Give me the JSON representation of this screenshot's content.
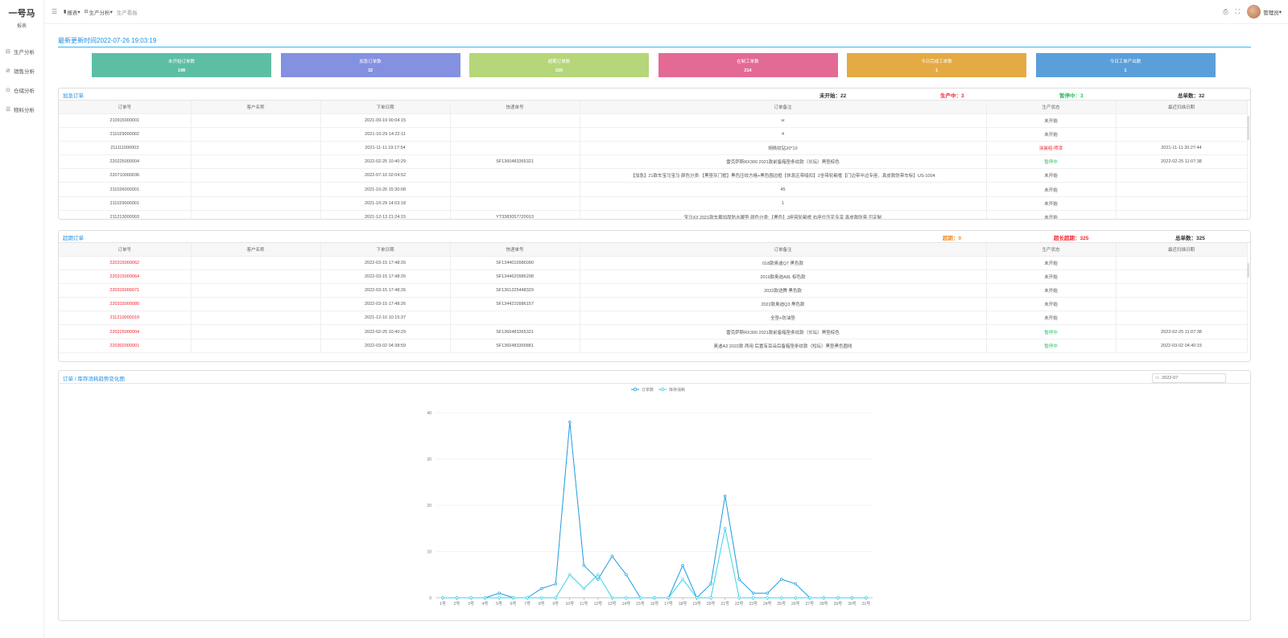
{
  "sidebar": {
    "logo_title": "一号马",
    "logo_sub": "报表",
    "items": [
      {
        "icon": "factory-icon",
        "glyph": "⊟",
        "label": "生产分析"
      },
      {
        "icon": "sales-icon",
        "glyph": "⊘",
        "label": "销售分析"
      },
      {
        "icon": "warehouse-icon",
        "glyph": "⊙",
        "label": "仓储分析"
      },
      {
        "icon": "material-icon",
        "glyph": "☰",
        "label": "物料分析"
      }
    ]
  },
  "header": {
    "breadcrumbs": [
      {
        "icon": "chart-icon",
        "glyph": "▮",
        "label": "报表"
      },
      {
        "icon": "factory-icon",
        "glyph": "⊟",
        "label": "生产分析"
      },
      {
        "icon": "",
        "glyph": "",
        "label": "生产看板"
      }
    ],
    "user_name": "管理员"
  },
  "update_text": "最新更新时间2022-07-26 19:03:19",
  "stats": [
    {
      "label": "未开始订单数",
      "value": "198",
      "color": "#5dbea6"
    },
    {
      "label": "加急订单数",
      "value": "32",
      "color": "#8490e0"
    },
    {
      "label": "超期订单数",
      "value": "325",
      "color": "#b6d67a"
    },
    {
      "label": "在制工单数",
      "value": "214",
      "color": "#e36a95"
    },
    {
      "label": "今日完成工单数",
      "value": "1",
      "color": "#e4aa44"
    },
    {
      "label": "今日工单产出数",
      "value": "1",
      "color": "#5b9fda"
    }
  ],
  "urgent": {
    "title": "加急订单",
    "not_started": "未开始：22",
    "in_production": "生产中：3",
    "paused": "暂停中：3",
    "total": "总单数：32",
    "columns": [
      "订单号",
      "客户名称",
      "下单日期",
      "快递单号",
      "订单备注",
      "生产状态",
      "最近扫描日期"
    ],
    "rows": [
      [
        "210915000001",
        "",
        "2021-09-19 00:04:15",
        "",
        "w",
        "未开始",
        ""
      ],
      [
        "211029000002",
        "",
        "2021-10-29 14:22:11",
        "",
        "4",
        "未开始",
        ""
      ],
      [
        "211111000003",
        "",
        "2021-11-11 19:17:54",
        "",
        "胡桃纹钻20*10",
        "涂装组-喷漆",
        "2021-11-11 20:27:44"
      ],
      [
        "220225000004",
        "",
        "2022-02-25 10:40:29",
        "SF1360483365321",
        "雷克萨斯RX300 2021款前备箱垫条纹款（长坛）黑垫棕色",
        "暂停中",
        "2022-02-25 11:07:38"
      ],
      [
        "220710000036",
        "",
        "2022-07-10 02:04:52",
        "",
        "【加急】21款车宝马宝马 颜色分类:【黑垫灰门框】黑色压纹方格+黑色围边框【休息区带暗扣】2坐带轮毂框【门边带半边专座、真皮款防带车标】US-1004",
        "未开始",
        ""
      ],
      [
        "211026000001",
        "",
        "2021-10-26 15:30:08",
        "",
        "45",
        "未开始",
        ""
      ],
      [
        "211029000001",
        "",
        "2021-10-29 14:03:18",
        "",
        "1",
        "未开始",
        ""
      ],
      [
        "211213000003",
        "",
        "2021-12-13 21:24:15",
        "YT3383057720013",
        "宝马X3 2021款车载加厚防水脚垫 颜色分类:【黑色】3座带轮毂框 右座位压花专享 真皮款防带 可定制",
        "未开始",
        ""
      ]
    ]
  },
  "overdue": {
    "title": "超期订单",
    "overdue_label": "超期：0",
    "long_overdue_label": "超长超期：325",
    "total": "总单数：325",
    "columns": [
      "订单号",
      "客户名称",
      "下单日期",
      "快递单号",
      "订单备注",
      "生产状态",
      "最近扫描日期"
    ],
    "rows": [
      [
        "220315000062",
        "",
        "2022-03-15 17:48:26",
        "SF1344010986090",
        "018款奥迪Q7 黑色款",
        "未开始",
        ""
      ],
      [
        "220315000064",
        "",
        "2022-03-15 17:48:26",
        "SF1344620986298",
        "2019款奥迪A8L 棕色款",
        "未开始",
        ""
      ],
      [
        "220315000071",
        "",
        "2022-03-15 17:48:26",
        "SF1361225448329",
        "2022款途腾 黑色款",
        "未开始",
        ""
      ],
      [
        "220315000080",
        "",
        "2022-03-15 17:48:26",
        "SF1344210986157",
        "2022款奥迪Q3 黑色款",
        "未开始",
        ""
      ],
      [
        "211210000019",
        "",
        "2021-12-10 10:15:37",
        "",
        "全垫+防油垫",
        "未开始",
        ""
      ],
      [
        "220225000004",
        "",
        "2022-02-25 10:40:29",
        "SF1360483365321",
        "雷克萨斯RX300 2021款前备箱垫条纹款（长坛）黑垫棕色",
        "暂停中",
        "2022-02-25 11:07:38"
      ],
      [
        "220302000001",
        "",
        "2022-03-02 04:38:59",
        "SF1360483365881",
        "奥迪A3 2022款 两用 后置有耳朵后备箱垫条纹款（短坛）黑垫黑色圆线",
        "暂停中",
        "2022-03-02 04:40:15"
      ]
    ]
  },
  "chart": {
    "title": "订单 / 库存消耗趋势变化图",
    "date_value": "2022-07"
  },
  "chart_data": {
    "type": "line",
    "x": [
      "1号",
      "2号",
      "3号",
      "4号",
      "5号",
      "6号",
      "7号",
      "8号",
      "9号",
      "10号",
      "11号",
      "12号",
      "13号",
      "14号",
      "15号",
      "16号",
      "17号",
      "18号",
      "19号",
      "20号",
      "21号",
      "22号",
      "23号",
      "24号",
      "25号",
      "26号",
      "27号",
      "28号",
      "29号",
      "30号",
      "31号"
    ],
    "series": [
      {
        "name": "订单数",
        "color": "#1e9be0",
        "values": [
          0,
          0,
          0,
          0,
          1,
          0,
          0,
          2,
          3,
          38,
          7,
          4,
          9,
          5,
          0,
          0,
          0,
          7,
          0,
          3,
          22,
          4,
          1,
          1,
          4,
          3,
          0,
          0,
          0,
          0,
          0
        ]
      },
      {
        "name": "库存消耗",
        "color": "#36d2e6",
        "values": [
          0,
          0,
          0,
          0,
          0,
          0,
          0,
          0,
          0,
          5,
          2,
          5,
          0,
          0,
          0,
          0,
          0,
          4,
          0,
          0,
          15,
          0,
          0,
          0,
          0,
          0,
          0,
          0,
          0,
          0,
          0
        ]
      }
    ],
    "ylim": [
      0,
      40
    ],
    "yticks": [
      0,
      10,
      20,
      30,
      40
    ],
    "legend": "top-center",
    "grid": true
  }
}
